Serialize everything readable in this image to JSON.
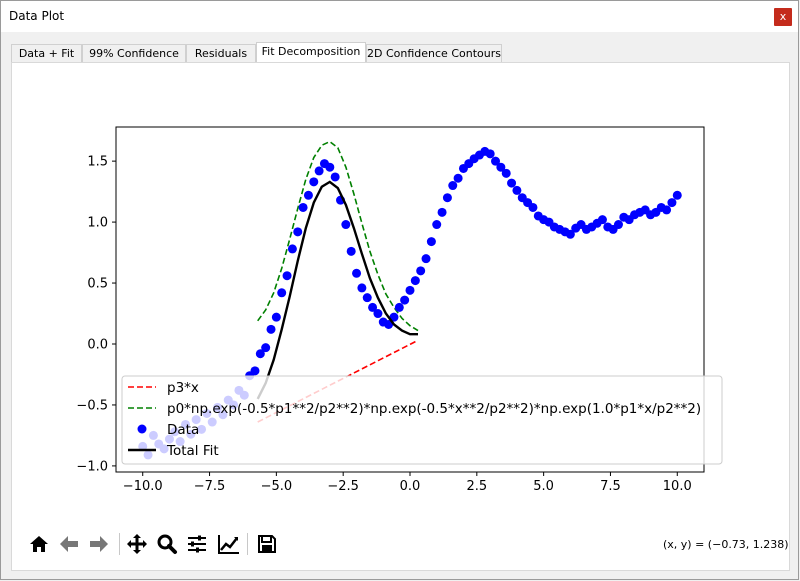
{
  "window": {
    "title": "Data Plot",
    "close_label": "x"
  },
  "tabs": [
    {
      "label": "Data + Fit",
      "active": false
    },
    {
      "label": "99% Confidence",
      "active": false
    },
    {
      "label": "Residuals",
      "active": false
    },
    {
      "label": "Fit Decomposition",
      "active": true
    },
    {
      "label": "2D Confidence Contours",
      "active": false
    }
  ],
  "toolbar": {
    "buttons": [
      "home-icon",
      "back-icon",
      "forward-icon",
      "pan-icon",
      "zoom-icon",
      "configure-subplots-icon",
      "edit-axis-icon",
      "save-icon"
    ],
    "coords_text": "(x, y) = (−0.73, 1.238)"
  },
  "chart_data": {
    "type": "scatter",
    "title": "",
    "xlabel": "",
    "ylabel": "",
    "xlim": [
      -11.0,
      11.0
    ],
    "ylim": [
      -1.05,
      1.78
    ],
    "xticks": [
      -10,
      -7.5,
      -5,
      -2.5,
      0,
      2.5,
      5,
      7.5,
      10
    ],
    "xtick_labels": [
      "−10.0",
      "−7.5",
      "−5.0",
      "−2.5",
      "0.0",
      "2.5",
      "5.0",
      "7.5",
      "10.0"
    ],
    "yticks": [
      -1.0,
      -0.5,
      0.0,
      0.5,
      1.0,
      1.5
    ],
    "ytick_labels": [
      "−1.0",
      "−0.5",
      "0.0",
      "0.5",
      "1.0",
      "1.5"
    ],
    "legend_position": "lower-left",
    "series": [
      {
        "name": "p3*x",
        "kind": "line",
        "style": "dashed",
        "color": "#ff0000",
        "x": [
          -5.7,
          0.3
        ],
        "y": [
          -0.64,
          0.03
        ]
      },
      {
        "name": "p0*np.exp(-0.5*p1**2/p2**2)*np.exp(-0.5*x**2/p2**2)*np.exp(1.0*p1*x/p2**2)",
        "kind": "line",
        "style": "dashed",
        "color": "#008000",
        "x": [
          -5.7,
          -5.4,
          -5.1,
          -4.8,
          -4.5,
          -4.2,
          -3.9,
          -3.6,
          -3.3,
          -3.0,
          -2.7,
          -2.4,
          -2.1,
          -1.8,
          -1.5,
          -1.2,
          -0.9,
          -0.6,
          -0.3,
          0.0,
          0.3
        ],
        "y": [
          0.19,
          0.28,
          0.42,
          0.62,
          0.86,
          1.11,
          1.35,
          1.53,
          1.63,
          1.66,
          1.61,
          1.45,
          1.23,
          0.99,
          0.76,
          0.57,
          0.41,
          0.3,
          0.21,
          0.15,
          0.11
        ]
      },
      {
        "name": "Data",
        "kind": "scatter",
        "color": "#0000ff",
        "x": [
          -10.0,
          -9.8,
          -9.6,
          -9.4,
          -9.2,
          -9.0,
          -8.8,
          -8.6,
          -8.4,
          -8.2,
          -8.0,
          -7.8,
          -7.6,
          -7.4,
          -7.2,
          -7.0,
          -6.8,
          -6.6,
          -6.4,
          -6.2,
          -6.0,
          -5.8,
          -5.6,
          -5.4,
          -5.2,
          -5.0,
          -4.8,
          -4.6,
          -4.4,
          -4.2,
          -4.0,
          -3.8,
          -3.6,
          -3.4,
          -3.2,
          -3.0,
          -2.8,
          -2.6,
          -2.4,
          -2.2,
          -2.0,
          -1.8,
          -1.6,
          -1.4,
          -1.2,
          -1.0,
          -0.8,
          -0.6,
          -0.4,
          -0.2,
          0.0,
          0.2,
          0.4,
          0.6,
          0.8,
          1.0,
          1.2,
          1.4,
          1.6,
          1.8,
          2.0,
          2.2,
          2.4,
          2.6,
          2.8,
          3.0,
          3.2,
          3.4,
          3.6,
          3.8,
          4.0,
          4.2,
          4.4,
          4.6,
          4.8,
          5.0,
          5.2,
          5.4,
          5.6,
          5.8,
          6.0,
          6.2,
          6.4,
          6.6,
          6.8,
          7.0,
          7.2,
          7.4,
          7.6,
          7.8,
          8.0,
          8.2,
          8.4,
          8.6,
          8.8,
          9.0,
          9.2,
          9.4,
          9.6,
          9.8,
          10.0
        ],
        "y": [
          -0.84,
          -0.91,
          -0.75,
          -0.82,
          -0.86,
          -0.78,
          -0.72,
          -0.8,
          -0.66,
          -0.74,
          -0.62,
          -0.7,
          -0.57,
          -0.64,
          -0.52,
          -0.58,
          -0.46,
          -0.5,
          -0.38,
          -0.42,
          -0.26,
          -0.22,
          -0.08,
          -0.03,
          0.12,
          0.22,
          0.42,
          0.56,
          0.78,
          0.92,
          1.12,
          1.22,
          1.33,
          1.42,
          1.48,
          1.45,
          1.37,
          1.18,
          0.98,
          0.76,
          0.58,
          0.46,
          0.38,
          0.3,
          0.25,
          0.18,
          0.16,
          0.22,
          0.3,
          0.36,
          0.44,
          0.52,
          0.6,
          0.7,
          0.84,
          0.98,
          1.08,
          1.2,
          1.3,
          1.36,
          1.44,
          1.48,
          1.52,
          1.55,
          1.58,
          1.56,
          1.5,
          1.45,
          1.4,
          1.32,
          1.26,
          1.2,
          1.16,
          1.12,
          1.05,
          1.02,
          1.0,
          0.96,
          0.94,
          0.92,
          0.9,
          0.95,
          0.98,
          0.94,
          0.96,
          0.99,
          1.02,
          0.96,
          0.94,
          0.98,
          1.04,
          1.02,
          1.06,
          1.08,
          1.1,
          1.06,
          1.08,
          1.12,
          1.1,
          1.16,
          1.22
        ]
      },
      {
        "name": "Total Fit",
        "kind": "line",
        "style": "solid",
        "color": "#000000",
        "x": [
          -5.7,
          -5.4,
          -5.1,
          -4.8,
          -4.5,
          -4.2,
          -3.9,
          -3.6,
          -3.3,
          -3.0,
          -2.7,
          -2.4,
          -2.1,
          -1.8,
          -1.5,
          -1.2,
          -0.9,
          -0.6,
          -0.3,
          0.0,
          0.3
        ],
        "y": [
          -0.45,
          -0.32,
          -0.13,
          0.12,
          0.39,
          0.68,
          0.95,
          1.16,
          1.29,
          1.33,
          1.28,
          1.14,
          0.95,
          0.74,
          0.54,
          0.38,
          0.25,
          0.16,
          0.11,
          0.08,
          0.08
        ]
      }
    ]
  }
}
